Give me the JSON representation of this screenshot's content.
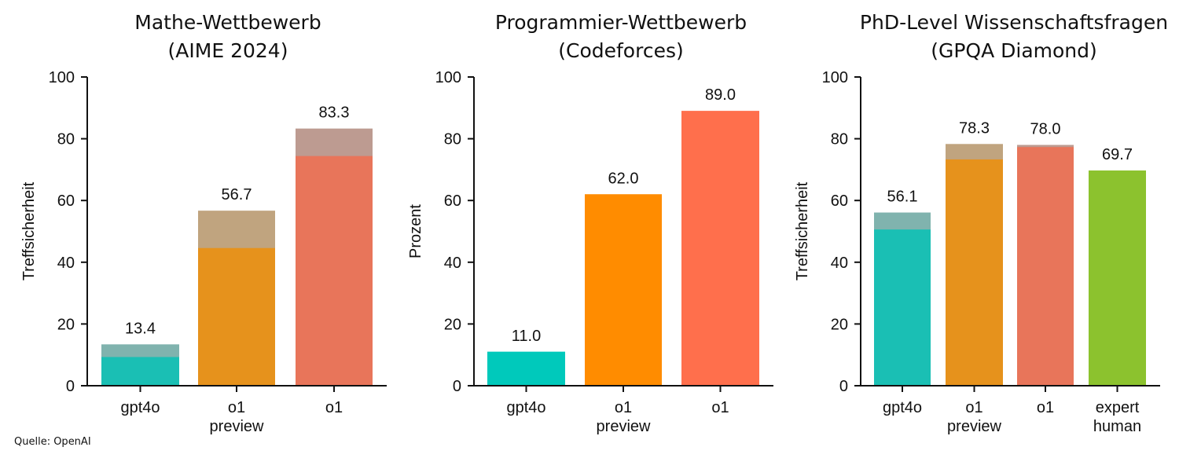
{
  "source": "Quelle: OpenAI",
  "chart_data": [
    {
      "type": "bar",
      "title": "Mathe-Wettbewerb",
      "subtitle": "(AIME 2024)",
      "xlabel": "",
      "ylabel": "Treffsicherheit",
      "ylim": [
        0,
        100
      ],
      "yticks": [
        0,
        20,
        40,
        60,
        80,
        100
      ],
      "grid": false,
      "categories": [
        "gpt4o",
        "o1\npreview",
        "o1"
      ],
      "values": [
        13.4,
        56.7,
        83.3
      ],
      "value_labels": [
        "13.4",
        "56.7",
        "83.3"
      ],
      "solid_portion": [
        9.3,
        44.6,
        74.4
      ],
      "colors": [
        "#1abfb4",
        "#e6921c",
        "#e8755a"
      ],
      "overlay_colors": [
        "#80b3ae",
        "#c0a47f",
        "#bd9b91"
      ]
    },
    {
      "type": "bar",
      "title": "Programmier-Wettbewerb",
      "subtitle": "(Codeforces)",
      "xlabel": "",
      "ylabel": "Prozent",
      "ylim": [
        0,
        100
      ],
      "yticks": [
        0,
        20,
        40,
        60,
        80,
        100
      ],
      "grid": false,
      "categories": [
        "gpt4o",
        "o1\npreview",
        "o1"
      ],
      "values": [
        11.0,
        62.0,
        89.0
      ],
      "value_labels": [
        "11.0",
        "62.0",
        "89.0"
      ],
      "solid_portion": [
        11.0,
        62.0,
        89.0
      ],
      "colors": [
        "#00c9bb",
        "#ff8c00",
        "#ff6f4c"
      ],
      "overlay_colors": [
        "#00c9bb",
        "#ff8c00",
        "#ff6f4c"
      ]
    },
    {
      "type": "bar",
      "title": "PhD-Level Wissenschaftsfragen",
      "subtitle": "(GPQA Diamond)",
      "xlabel": "",
      "ylabel": "Treffsicherheit",
      "ylim": [
        0,
        100
      ],
      "yticks": [
        0,
        20,
        40,
        60,
        80,
        100
      ],
      "grid": false,
      "categories": [
        "gpt4o",
        "o1\npreview",
        "o1",
        "expert\nhuman"
      ],
      "values": [
        56.1,
        78.3,
        78.0,
        69.7
      ],
      "value_labels": [
        "56.1",
        "78.3",
        "78.0",
        "69.7"
      ],
      "solid_portion": [
        50.6,
        73.3,
        77.3,
        69.7
      ],
      "colors": [
        "#1abfb4",
        "#e6921c",
        "#e8755a",
        "#8cc22e"
      ],
      "overlay_colors": [
        "#80b3ae",
        "#c0a47f",
        "#bd9b91",
        "#8cc22e"
      ]
    }
  ]
}
